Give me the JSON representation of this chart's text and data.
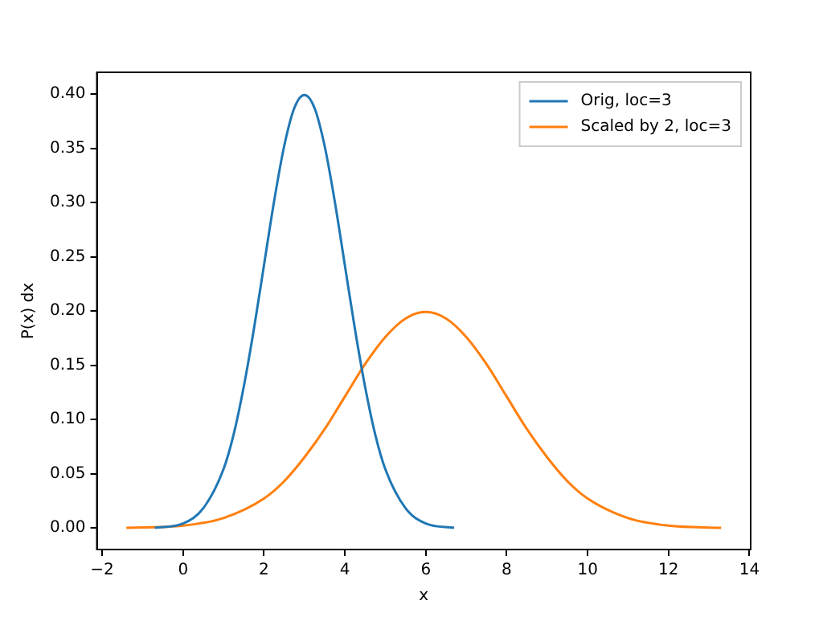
{
  "chart_data": {
    "type": "line",
    "xlabel": "x",
    "ylabel": "P(x) dx",
    "xlim": [
      -2.13,
      14.03
    ],
    "xticks": [
      -2,
      0,
      2,
      4,
      6,
      8,
      10,
      12,
      14
    ],
    "ylim": [
      -0.02,
      0.42
    ],
    "yticks": [
      {
        "value": 0,
        "label": "0.00"
      },
      {
        "value": 0.05,
        "label": "0.05"
      },
      {
        "value": 0.1,
        "label": "0.10"
      },
      {
        "value": 0.15,
        "label": "0.15"
      },
      {
        "value": 0.2,
        "label": "0.20"
      },
      {
        "value": 0.25,
        "label": "0.25"
      },
      {
        "value": 0.3,
        "label": "0.30"
      },
      {
        "value": 0.35,
        "label": "0.35"
      },
      {
        "value": 0.4,
        "label": "0.40"
      }
    ],
    "grid": false,
    "legend": "top right",
    "marker": "none",
    "line_style": "solid",
    "series": [
      {
        "name": "Orig, loc=3",
        "color": "#1f77b4",
        "x": [
          -0.7,
          0,
          0.5,
          1,
          1.25,
          1.5,
          1.75,
          2,
          2.25,
          2.5,
          2.75,
          3,
          3.25,
          3.5,
          3.75,
          4,
          4.25,
          4.5,
          4.75,
          5,
          5.5,
          6,
          6.7
        ],
        "values": [
          0,
          0.004,
          0.018,
          0.054,
          0.086,
          0.13,
          0.183,
          0.242,
          0.301,
          0.352,
          0.387,
          0.399,
          0.387,
          0.352,
          0.301,
          0.242,
          0.183,
          0.13,
          0.086,
          0.054,
          0.018,
          0.004,
          0
        ]
      },
      {
        "name": "Scaled by 2, loc=3",
        "color": "#ff7f0e",
        "x": [
          -1.4,
          0,
          1,
          2,
          2.5,
          3,
          3.5,
          4,
          4.5,
          5,
          5.5,
          6,
          6.5,
          7,
          7.5,
          8,
          8.5,
          9,
          9.5,
          10,
          11,
          12,
          13.3
        ],
        "values": [
          0,
          0.002,
          0.009,
          0.027,
          0.043,
          0.065,
          0.091,
          0.121,
          0.151,
          0.176,
          0.193,
          0.199,
          0.193,
          0.176,
          0.151,
          0.121,
          0.091,
          0.065,
          0.043,
          0.027,
          0.009,
          0.002,
          0
        ]
      }
    ]
  }
}
